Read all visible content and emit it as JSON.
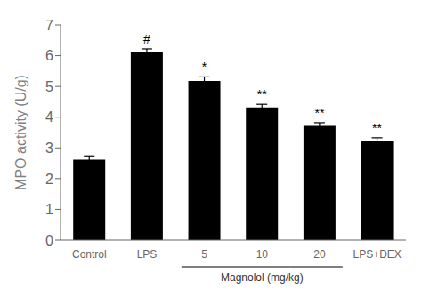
{
  "chart_data": {
    "type": "bar",
    "categories": [
      "Control",
      "LPS",
      "5",
      "10",
      "20",
      "LPS+DEX"
    ],
    "values": [
      2.62,
      6.12,
      5.18,
      4.32,
      3.72,
      3.24
    ],
    "errors": [
      0.12,
      0.1,
      0.13,
      0.1,
      0.1,
      0.09
    ],
    "color": "#000000",
    "ylabel": "MPO activity (U/g)",
    "ylim": [
      0,
      7
    ],
    "yticks": [
      0,
      1,
      2,
      3,
      4,
      5,
      6,
      7
    ],
    "annotations": [
      {
        "category": "LPS",
        "text": "#"
      },
      {
        "category": "5",
        "text": "*"
      },
      {
        "category": "10",
        "text": "**"
      },
      {
        "category": "20",
        "text": "**"
      },
      {
        "category": "LPS+DEX",
        "text": "**"
      }
    ],
    "groups": [
      {
        "label": "Magnolol (mg/kg)",
        "categories": [
          "5",
          "10",
          "20"
        ]
      }
    ],
    "grid": false
  }
}
